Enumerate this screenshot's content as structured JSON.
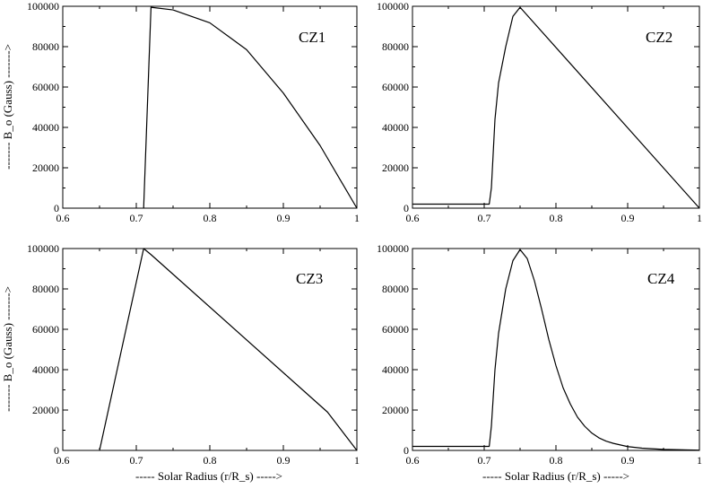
{
  "chart_data": [
    {
      "type": "line",
      "title": "CZ1",
      "xlabel": "",
      "ylabel": "------- B_o (Gauss) ------->",
      "xlim": [
        0.6,
        1.0
      ],
      "ylim": [
        0,
        100000
      ],
      "xticks": [
        "0.6",
        "0.7",
        "0.8",
        "0.9",
        "1"
      ],
      "yticks": [
        "0",
        "20000",
        "40000",
        "60000",
        "80000",
        "100000"
      ],
      "grid": false,
      "series": [
        {
          "x": [
            0.71,
            0.71,
            0.72,
            0.75,
            0.8,
            0.85,
            0.9,
            0.95,
            1.0
          ],
          "y": [
            0,
            0,
            99500,
            98200,
            91800,
            78500,
            57000,
            31000,
            0
          ]
        }
      ]
    },
    {
      "type": "line",
      "title": "CZ2",
      "xlabel": "",
      "ylabel": "",
      "xlim": [
        0.6,
        1.0
      ],
      "ylim": [
        0,
        100000
      ],
      "xticks": [
        "0.6",
        "0.7",
        "0.8",
        "0.9",
        "1"
      ],
      "yticks": [
        "0",
        "20000",
        "40000",
        "60000",
        "80000",
        "100000"
      ],
      "grid": false,
      "series": [
        {
          "x": [
            0.6,
            0.707,
            0.71,
            0.715,
            0.72,
            0.73,
            0.74,
            0.75,
            1.0
          ],
          "y": [
            2000,
            2000,
            10000,
            44000,
            62000,
            80000,
            95000,
            99500,
            0
          ]
        }
      ]
    },
    {
      "type": "line",
      "title": "CZ3",
      "xlabel": "----- Solar Radius (r/R_s) ----->",
      "ylabel": "------- B_o (Gauss) ------->",
      "xlim": [
        0.6,
        1.0
      ],
      "ylim": [
        0,
        100000
      ],
      "xticks": [
        "0.6",
        "0.7",
        "0.8",
        "0.9",
        "1"
      ],
      "yticks": [
        "0",
        "20000",
        "40000",
        "60000",
        "80000",
        "100000"
      ],
      "grid": false,
      "series": [
        {
          "x": [
            0.65,
            0.71,
            0.72,
            0.96,
            1.0
          ],
          "y": [
            0,
            100000,
            97000,
            19000,
            0
          ]
        }
      ]
    },
    {
      "type": "line",
      "title": "CZ4",
      "xlabel": "----- Solar Radius (r/R_s) ----->",
      "ylabel": "",
      "xlim": [
        0.6,
        1.0
      ],
      "ylim": [
        0,
        100000
      ],
      "xticks": [
        "0.6",
        "0.7",
        "0.8",
        "0.9",
        "1"
      ],
      "yticks": [
        "0",
        "20000",
        "40000",
        "60000",
        "80000",
        "100000"
      ],
      "grid": false,
      "series": [
        {
          "x": [
            0.6,
            0.707,
            0.71,
            0.715,
            0.72,
            0.73,
            0.74,
            0.75,
            0.76,
            0.77,
            0.78,
            0.79,
            0.8,
            0.81,
            0.82,
            0.83,
            0.84,
            0.85,
            0.86,
            0.87,
            0.88,
            0.9,
            0.92,
            0.95,
            1.0
          ],
          "y": [
            2000,
            2000,
            12000,
            40000,
            58000,
            80000,
            94000,
            99500,
            95000,
            84000,
            70000,
            55000,
            42000,
            31000,
            23000,
            16500,
            12000,
            8600,
            6200,
            4600,
            3500,
            1900,
            1100,
            500,
            100
          ]
        }
      ]
    }
  ]
}
